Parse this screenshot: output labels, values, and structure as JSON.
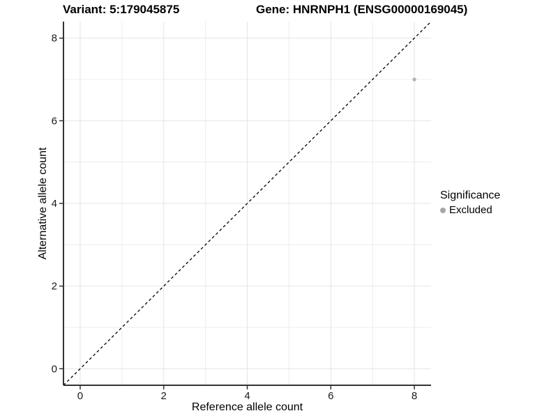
{
  "header": {
    "variant_title": "Variant: 5:179045875",
    "gene_title": "Gene: HNRNPH1 (ENSG00000169045)"
  },
  "chart_data": {
    "type": "scatter",
    "xlabel": "Reference allele count",
    "ylabel": "Alternative allele count",
    "xlim": [
      -0.4,
      8.4
    ],
    "ylim": [
      -0.4,
      8.4
    ],
    "xticks": [
      0,
      2,
      4,
      6,
      8
    ],
    "yticks": [
      0,
      2,
      4,
      6,
      8
    ],
    "xminor": [
      1,
      3,
      5,
      7
    ],
    "yminor": [
      1,
      3,
      5,
      7
    ],
    "grid": "major and minor gridlines, light grey on white",
    "identity_line": {
      "slope": 1,
      "intercept": 0,
      "style": "dashed",
      "color": "#000000"
    },
    "series": [
      {
        "name": "Excluded",
        "color": "#b4b4b4",
        "points": [
          {
            "x": 8,
            "y": 7
          }
        ]
      }
    ],
    "legend": {
      "title": "Significance",
      "position": "right",
      "entries": [
        {
          "label": "Excluded",
          "color": "#a6a6a6"
        }
      ]
    }
  },
  "colors": {
    "background": "#ffffff",
    "grid_major": "#e4e4e4",
    "grid_minor": "#ececec",
    "axis_line": "#333333",
    "tick": "#333333",
    "tick_label": "#1a1a1a"
  }
}
